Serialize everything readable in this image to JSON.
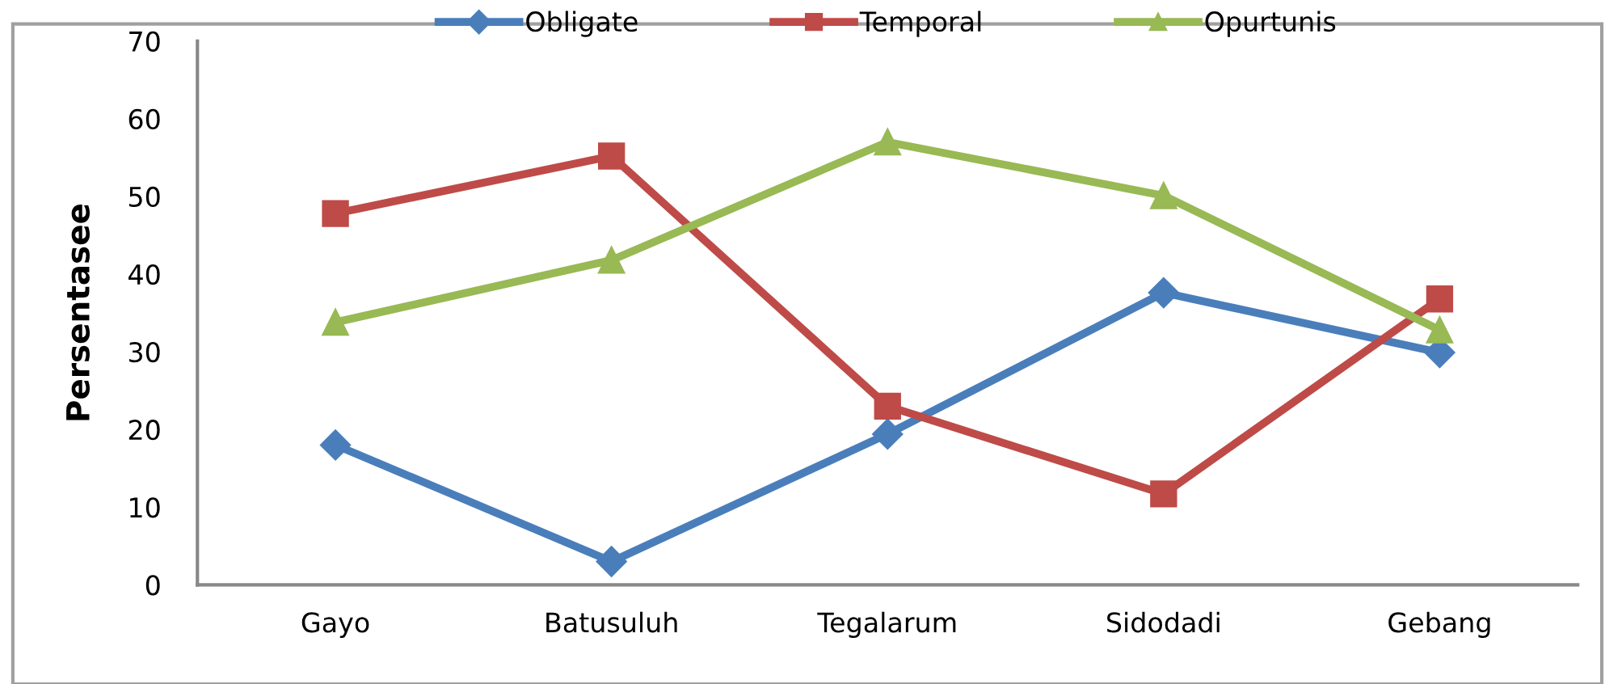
{
  "chart_data": {
    "type": "line",
    "ylabel": "Persentasee",
    "categories": [
      "Gayo",
      "Batusuluh",
      "Tegalarum",
      "Sidodadi",
      "Gebang"
    ],
    "series": [
      {
        "name": "Obligate",
        "color": "#4a7ebb",
        "marker": "diamond",
        "values": [
          18,
          3,
          19.4,
          37.6,
          29.9
        ]
      },
      {
        "name": "Temporal",
        "color": "#be4b48",
        "marker": "square",
        "values": [
          47.8,
          55.2,
          23,
          11.7,
          36.8
        ]
      },
      {
        "name": "Opurtunis",
        "color": "#98b954",
        "marker": "triangle",
        "values": [
          33.8,
          41.8,
          57,
          50.1,
          32.8
        ]
      }
    ],
    "ylim": [
      0,
      70
    ],
    "yticks": [
      0,
      10,
      20,
      30,
      40,
      50,
      60,
      70
    ],
    "grid": false,
    "legend": "top"
  }
}
